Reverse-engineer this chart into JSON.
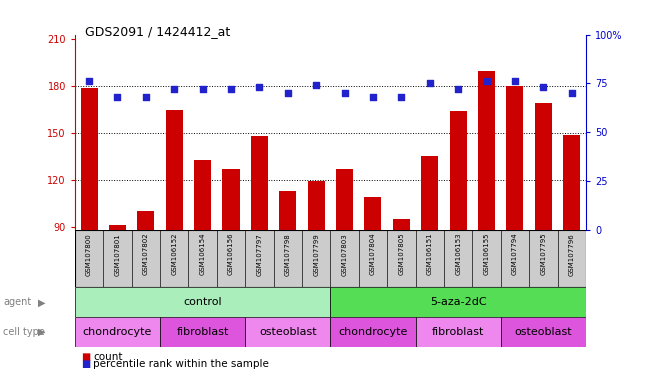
{
  "title": "GDS2091 / 1424412_at",
  "samples": [
    "GSM107800",
    "GSM107801",
    "GSM107802",
    "GSM106152",
    "GSM106154",
    "GSM106156",
    "GSM107797",
    "GSM107798",
    "GSM107799",
    "GSM107803",
    "GSM107804",
    "GSM107805",
    "GSM106151",
    "GSM106153",
    "GSM106155",
    "GSM107794",
    "GSM107795",
    "GSM107796"
  ],
  "counts": [
    179,
    91,
    100,
    165,
    133,
    127,
    148,
    113,
    119,
    127,
    109,
    95,
    135,
    164,
    190,
    180,
    169,
    149
  ],
  "percentile_ranks": [
    76,
    68,
    68,
    72,
    72,
    72,
    73,
    70,
    74,
    70,
    68,
    68,
    75,
    72,
    76,
    76,
    73,
    70
  ],
  "bar_color": "#cc0000",
  "dot_color": "#2222cc",
  "ylim_left": [
    88,
    213
  ],
  "yticks_left": [
    90,
    120,
    150,
    180,
    210
  ],
  "ylim_right": [
    0,
    100
  ],
  "yticks_right": [
    0,
    25,
    50,
    75,
    100
  ],
  "agent_groups": [
    {
      "label": "control",
      "start": 0,
      "end": 9,
      "color": "#aaeebb"
    },
    {
      "label": "5-aza-2dC",
      "start": 9,
      "end": 18,
      "color": "#55dd55"
    }
  ],
  "cell_type_groups": [
    {
      "label": "chondrocyte",
      "start": 0,
      "end": 3,
      "color": "#ee88ee"
    },
    {
      "label": "fibroblast",
      "start": 3,
      "end": 6,
      "color": "#dd55dd"
    },
    {
      "label": "osteoblast",
      "start": 6,
      "end": 9,
      "color": "#ee88ee"
    },
    {
      "label": "chondrocyte",
      "start": 9,
      "end": 12,
      "color": "#dd55dd"
    },
    {
      "label": "fibroblast",
      "start": 12,
      "end": 15,
      "color": "#ee88ee"
    },
    {
      "label": "osteoblast",
      "start": 15,
      "end": 18,
      "color": "#dd55dd"
    }
  ],
  "legend_count_color": "#cc0000",
  "legend_dot_color": "#2222cc",
  "bg_color": "#ffffff",
  "tick_label_color_left": "#cc0000",
  "tick_label_color_right": "#0000cc",
  "xtick_bg_color": "#cccccc",
  "grid_yticks": [
    120,
    150,
    180
  ]
}
